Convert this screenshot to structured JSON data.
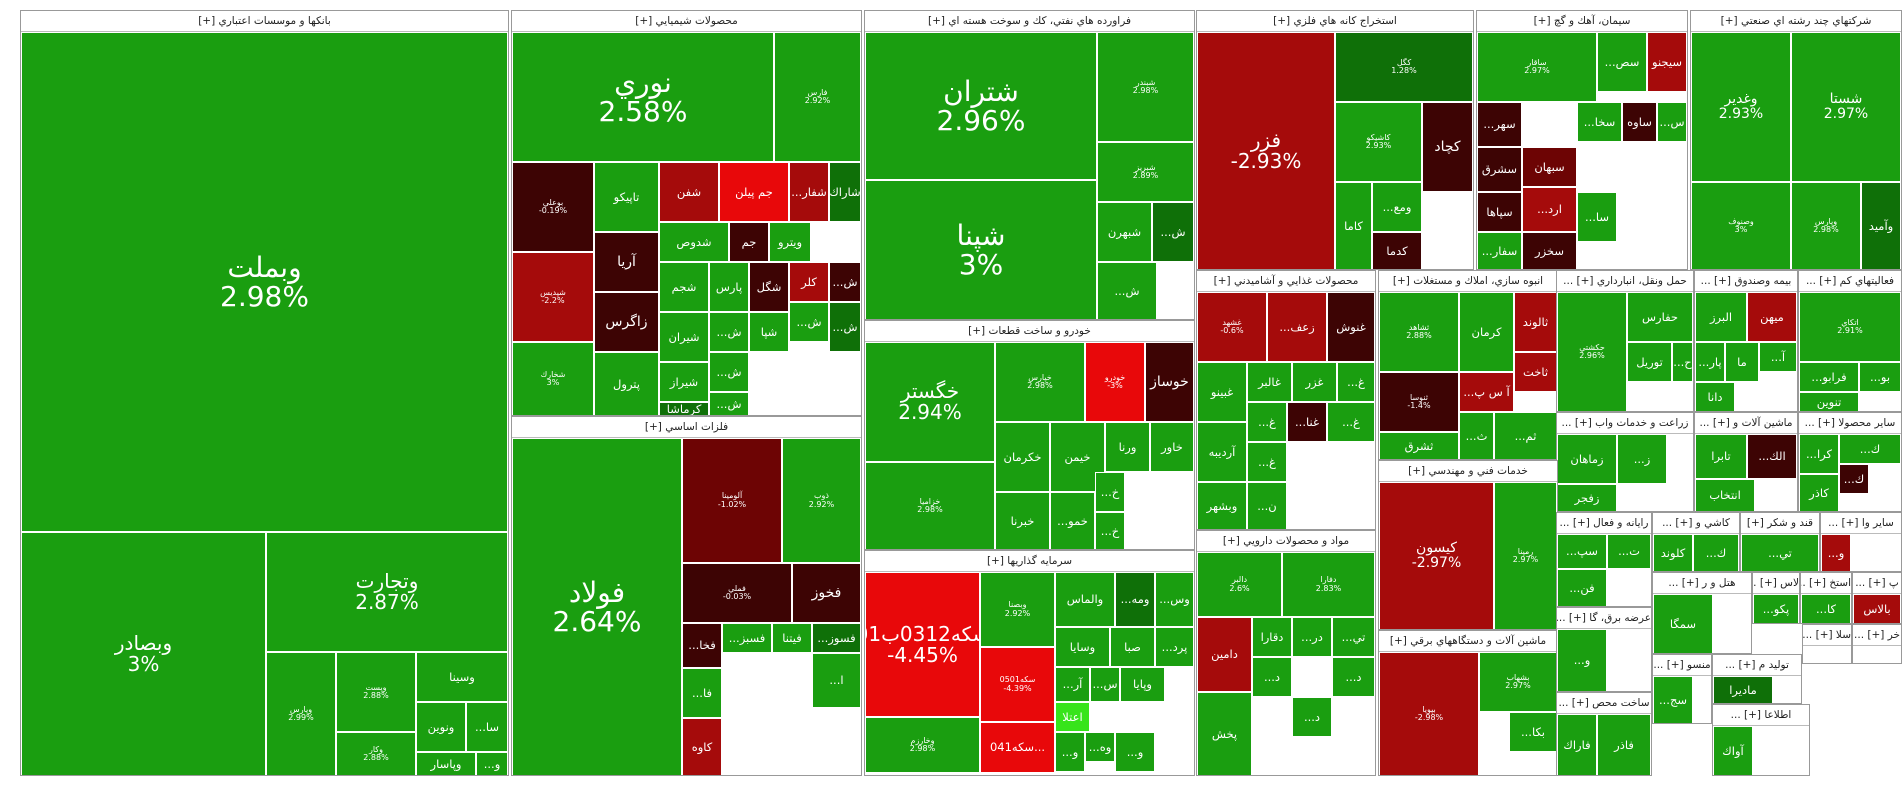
{
  "colors": {
    "strong_green": "#1a9e10",
    "dark_green": "#0f7008",
    "light_green": "#22c40f",
    "bright_green": "#37e41b",
    "red": "#a50b0b",
    "bright_red": "#e8080a",
    "dark_red": "#3d0404",
    "maroon": "#6d0404",
    "header_bg": "#ffffff",
    "text": "#ffffff"
  },
  "sections": [
    {
      "id": "banks",
      "label": "بانكها و موسسات اعتباري [+]",
      "tiles": [
        {
          "n": "وبملت",
          "p": "2.98%"
        },
        {
          "n": "وتجارت",
          "p": "2.87%"
        },
        {
          "n": "وبصادر",
          "p": "3%"
        },
        {
          "n": "وپارس",
          "p": "2.99%"
        },
        {
          "n": "وپست",
          "p": "2.88%"
        },
        {
          "n": "وسينا",
          "p": ""
        },
        {
          "n": "ونوين",
          "p": ""
        },
        {
          "n": "...سا",
          "p": ""
        },
        {
          "n": "وكار",
          "p": "2.88%"
        },
        {
          "n": "وپاسار",
          "p": ""
        },
        {
          "n": "...و",
          "p": ""
        }
      ]
    },
    {
      "id": "chemical",
      "label": "محصولات شيميايي [+]",
      "tiles": [
        {
          "n": "نوري",
          "p": "2.58%"
        },
        {
          "n": "فارس",
          "p": "2.92%"
        },
        {
          "n": "بوعلي",
          "p": "-0.19%"
        },
        {
          "n": "تاپيكو",
          "p": ""
        },
        {
          "n": "شفن",
          "p": ""
        },
        {
          "n": "جم پيلن",
          "p": ""
        },
        {
          "n": "...شفار",
          "p": ""
        },
        {
          "n": "شاراك",
          "p": ""
        },
        {
          "n": "آريا",
          "p": ""
        },
        {
          "n": "شدوص",
          "p": ""
        },
        {
          "n": "جم",
          "p": ""
        },
        {
          "n": "ويترو",
          "p": ""
        },
        {
          "n": "شپديس",
          "p": "-2.2%"
        },
        {
          "n": "زاگرس",
          "p": ""
        },
        {
          "n": "شجم",
          "p": ""
        },
        {
          "n": "پارس",
          "p": ""
        },
        {
          "n": "شگل",
          "p": ""
        },
        {
          "n": "كلر",
          "p": ""
        },
        {
          "n": "...ش",
          "p": ""
        },
        {
          "n": "شيران",
          "p": ""
        },
        {
          "n": "...ش",
          "p": ""
        },
        {
          "n": "شپا",
          "p": ""
        },
        {
          "n": "...ش",
          "p": ""
        },
        {
          "n": "...ش",
          "p": ""
        },
        {
          "n": "شيراز",
          "p": ""
        },
        {
          "n": "شخارك",
          "p": "3%"
        },
        {
          "n": "پترول",
          "p": ""
        },
        {
          "n": "كرماشا",
          "p": ""
        },
        {
          "n": "...ش",
          "p": ""
        },
        {
          "n": "...ش",
          "p": ""
        }
      ]
    },
    {
      "id": "oil",
      "label": "فراورده هاي نفتي، كك و سوخت هسته اي [+]",
      "tiles": [
        {
          "n": "شتران",
          "p": "2.96%"
        },
        {
          "n": "شبندر",
          "p": "2.98%"
        },
        {
          "n": "شپنا",
          "p": "3%"
        },
        {
          "n": "شبريز",
          "p": "2.89%"
        },
        {
          "n": "شبهرن",
          "p": ""
        },
        {
          "n": "...ش",
          "p": ""
        },
        {
          "n": "...ش",
          "p": ""
        }
      ]
    },
    {
      "id": "auto",
      "label": "خودرو و ساخت قطعات [+]",
      "tiles": [
        {
          "n": "خگستر",
          "p": "2.94%"
        },
        {
          "n": "خپارس",
          "p": "2.98%"
        },
        {
          "n": "خودرو",
          "p": "-3%"
        },
        {
          "n": "خوساز",
          "p": ""
        },
        {
          "n": "خزاميا",
          "p": "2.98%"
        },
        {
          "n": "خكرمان",
          "p": ""
        },
        {
          "n": "خيمن",
          "p": ""
        },
        {
          "n": "ورنا",
          "p": ""
        },
        {
          "n": "خاور",
          "p": ""
        },
        {
          "n": "خبرنا",
          "p": ""
        },
        {
          "n": "...خمو",
          "p": ""
        },
        {
          "n": "...خ",
          "p": ""
        },
        {
          "n": "...خ",
          "p": ""
        }
      ]
    },
    {
      "id": "invest",
      "label": "سرمايه گذاريها [+]",
      "tiles": [
        {
          "n": "سكه0312ب01",
          "p": "-4.45%"
        },
        {
          "n": "وبصنا",
          "p": "2.92%"
        },
        {
          "n": "والماس",
          "p": ""
        },
        {
          "n": "...ومه",
          "p": ""
        },
        {
          "n": "...وس",
          "p": ""
        },
        {
          "n": "وسايا",
          "p": ""
        },
        {
          "n": "صبا",
          "p": ""
        },
        {
          "n": "...پرد",
          "p": ""
        },
        {
          "n": "سكه0501",
          "p": "-4.39%"
        },
        {
          "n": "...آر",
          "p": ""
        },
        {
          "n": "...س",
          "p": ""
        },
        {
          "n": "وپايا",
          "p": ""
        },
        {
          "n": "اعتلا",
          "p": ""
        },
        {
          "n": "وخارزم",
          "p": "2.98%"
        },
        {
          "n": "سكه041...",
          "p": ""
        },
        {
          "n": "...و",
          "p": ""
        },
        {
          "n": "...وه",
          "p": ""
        },
        {
          "n": "...و",
          "p": ""
        }
      ]
    },
    {
      "id": "metals",
      "label": "فلزات اساسي [+]",
      "tiles": [
        {
          "n": "فولاد",
          "p": "2.64%"
        },
        {
          "n": "آلومينا",
          "p": "-1.02%"
        },
        {
          "n": "ذوب",
          "p": "2.92%"
        },
        {
          "n": "فملي",
          "p": "-0.03%"
        },
        {
          "n": "فخوز",
          "p": ""
        },
        {
          "n": "...فخا",
          "p": ""
        },
        {
          "n": "...فسبز",
          "p": ""
        },
        {
          "n": "فيتنا",
          "p": ""
        },
        {
          "n": "...فسوز",
          "p": ""
        },
        {
          "n": "...فا",
          "p": ""
        },
        {
          "n": "كاوه",
          "p": ""
        },
        {
          "n": "...ا",
          "p": ""
        }
      ]
    },
    {
      "id": "mining",
      "label": "استخراج كانه هاي فلزي [+]",
      "tiles": [
        {
          "n": "فزر",
          "p": "-2.93%"
        },
        {
          "n": "كگل",
          "p": "1.28%"
        },
        {
          "n": "كچاد",
          "p": ""
        },
        {
          "n": "كاشيكو",
          "p": "2.93%"
        },
        {
          "n": "...ومع",
          "p": ""
        },
        {
          "n": "كاما",
          "p": ""
        },
        {
          "n": "كدما",
          "p": ""
        }
      ]
    },
    {
      "id": "cement",
      "label": "سيمان، آهك و گچ [+]",
      "tiles": [
        {
          "n": "سيجنو",
          "p": ""
        },
        {
          "n": "ساقار",
          "p": "2.97%"
        },
        {
          "n": "...سص",
          "p": ""
        },
        {
          "n": "...سهر",
          "p": ""
        },
        {
          "n": "...سخا",
          "p": ""
        },
        {
          "n": "ساوه",
          "p": ""
        },
        {
          "n": "...س",
          "p": ""
        },
        {
          "n": "سشرق",
          "p": ""
        },
        {
          "n": "سبهان",
          "p": ""
        },
        {
          "n": "سپاها",
          "p": ""
        },
        {
          "n": "...ارد",
          "p": ""
        },
        {
          "n": "...سا",
          "p": ""
        },
        {
          "n": "...سفار",
          "p": ""
        },
        {
          "n": "سخزر",
          "p": ""
        }
      ]
    },
    {
      "id": "multi",
      "label": "شركتهاي چند رشته اي صنعتي [+]",
      "tiles": [
        {
          "n": "وغدير",
          "p": "2.93%"
        },
        {
          "n": "شستا",
          "p": "2.97%"
        },
        {
          "n": "وصنوف",
          "p": "3%"
        },
        {
          "n": "وپارس",
          "p": "2.98%"
        },
        {
          "n": "وآميد",
          "p": ""
        }
      ]
    },
    {
      "id": "food",
      "label": "محصولات غذايي و آشاميدني [+]",
      "tiles": [
        {
          "n": "غشهد",
          "p": "-0.6%"
        },
        {
          "n": "...زعف",
          "p": ""
        },
        {
          "n": "غنوش",
          "p": ""
        },
        {
          "n": "غالبر",
          "p": ""
        },
        {
          "n": "غزر",
          "p": ""
        },
        {
          "n": "...غ",
          "p": ""
        },
        {
          "n": "غبينو",
          "p": ""
        },
        {
          "n": "...غ",
          "p": ""
        },
        {
          "n": "...غنا",
          "p": ""
        },
        {
          "n": "آرديبه",
          "p": ""
        },
        {
          "n": "...غ",
          "p": ""
        },
        {
          "n": "...غ",
          "p": ""
        },
        {
          "n": "وبشهر",
          "p": ""
        },
        {
          "n": "...ن",
          "p": ""
        }
      ]
    },
    {
      "id": "realestate",
      "label": "انبوه سازي، املاك و مستغلات [+]",
      "tiles": [
        {
          "n": "ثشاهد",
          "p": "2.88%"
        },
        {
          "n": "كرمان",
          "p": ""
        },
        {
          "n": "ثالوند",
          "p": ""
        },
        {
          "n": "ثنوسا",
          "p": "-1.4%"
        },
        {
          "n": "...آ س پ",
          "p": ""
        },
        {
          "n": "ثاخت",
          "p": ""
        },
        {
          "n": "ثشرق",
          "p": ""
        },
        {
          "n": "...ث",
          "p": ""
        },
        {
          "n": "...ثم",
          "p": ""
        }
      ]
    },
    {
      "id": "transport",
      "label": "حمل ونقل، انبارداري [+] ...",
      "tiles": [
        {
          "n": "حكشتي",
          "p": "2.96%"
        },
        {
          "n": "حفارس",
          "p": ""
        },
        {
          "n": "توريل",
          "p": ""
        },
        {
          "n": "...ح",
          "p": ""
        }
      ]
    },
    {
      "id": "insurance",
      "label": "بيمه وصندوق [+] ...",
      "tiles": [
        {
          "n": "البرز",
          "p": ""
        },
        {
          "n": "ميهن",
          "p": ""
        },
        {
          "n": "...پار",
          "p": ""
        },
        {
          "n": "ما",
          "p": ""
        },
        {
          "n": "...آ",
          "p": ""
        },
        {
          "n": "دانا",
          "p": ""
        }
      ]
    },
    {
      "id": "other_fin",
      "label": "فعاليتهاي كم [+] ...",
      "tiles": [
        {
          "n": "اتكاي",
          "p": "2.91%"
        },
        {
          "n": "...فرابو",
          "p": ""
        },
        {
          "n": "...بو",
          "p": ""
        },
        {
          "n": "تنوين",
          "p": ""
        }
      ]
    },
    {
      "id": "agri",
      "label": "زراعت و خدمات واب [+] ...",
      "tiles": [
        {
          "n": "زماهان",
          "p": ""
        },
        {
          "n": "...ز",
          "p": ""
        },
        {
          "n": "زفجر",
          "p": ""
        }
      ]
    },
    {
      "id": "machinery",
      "label": "ماشين آلات و [+] ...",
      "tiles": [
        {
          "n": "تابرا",
          "p": ""
        },
        {
          "n": "...الك",
          "p": ""
        },
        {
          "n": "انتخاب",
          "p": ""
        }
      ]
    },
    {
      "id": "misc_prod",
      "label": "ساير محصولا [+] ...",
      "tiles": [
        {
          "n": "...ك",
          "p": ""
        },
        {
          "n": "...كرا",
          "p": ""
        },
        {
          "n": "...ك",
          "p": ""
        },
        {
          "n": "كاذر",
          "p": ""
        }
      ]
    },
    {
      "id": "engineering",
      "label": "خدمات فني و مهندسي [+]",
      "tiles": [
        {
          "n": "كيسون",
          "p": "-2.97%"
        },
        {
          "n": "رمپنا",
          "p": "2.97%"
        }
      ]
    },
    {
      "id": "pharma",
      "label": "مواد و محصولات دارويي [+]",
      "tiles": [
        {
          "n": "دالبر",
          "p": "2.6%"
        },
        {
          "n": "دفارا",
          "p": "2.83%"
        },
        {
          "n": "دامين",
          "p": ""
        },
        {
          "n": "دقارا",
          "p": ""
        },
        {
          "n": "...در",
          "p": ""
        },
        {
          "n": "...تي",
          "p": ""
        },
        {
          "n": "...د",
          "p": ""
        },
        {
          "n": "...د",
          "p": ""
        },
        {
          "n": "پخش",
          "p": ""
        },
        {
          "n": "...د",
          "p": ""
        }
      ]
    },
    {
      "id": "electric",
      "label": "ماشين آلات و دستگاههاي برقي [+]",
      "tiles": [
        {
          "n": "بپويا",
          "p": "-2.98%"
        },
        {
          "n": "بشهاب",
          "p": "2.97%"
        },
        {
          "n": "...بكا",
          "p": ""
        }
      ]
    },
    {
      "id": "computer",
      "label": "رايانه و فعال [+] ...",
      "tiles": [
        {
          "n": "...سپ",
          "p": ""
        },
        {
          "n": "...ت",
          "p": ""
        },
        {
          "n": "...فن",
          "p": ""
        }
      ]
    },
    {
      "id": "tiles",
      "label": "كاشي و [+] ...",
      "tiles": [
        {
          "n": "كلوند",
          "p": ""
        },
        {
          "n": "...ك",
          "p": ""
        }
      ]
    },
    {
      "id": "sugar",
      "label": "قند و شكر [+]",
      "tiles": [
        {
          "n": "...تي",
          "p": ""
        }
      ]
    },
    {
      "id": "misc2",
      "label": "ساير وا [+] ...",
      "tiles": [
        {
          "n": "...و",
          "p": ""
        }
      ]
    },
    {
      "id": "utilities",
      "label": "عرضه برق، گا [+] ...",
      "tiles": [
        {
          "n": "...و",
          "p": ""
        }
      ]
    },
    {
      "id": "hotels",
      "label": "هتل و ر [+] ...",
      "tiles": [
        {
          "n": "سمگا",
          "p": ""
        }
      ]
    },
    {
      "id": "textile",
      "label": "منسو [+] ...",
      "tiles": [
        {
          "n": "...سج",
          "p": ""
        }
      ]
    },
    {
      "id": "construction",
      "label": "ساخت محص [+] ...",
      "tiles": [
        {
          "n": "فاذر",
          "p": ""
        },
        {
          "n": "فاراك",
          "p": ""
        }
      ]
    },
    {
      "id": "plastic",
      "label": "لاس [+] ...",
      "tiles": [
        {
          "n": "...پكو",
          "p": ""
        }
      ]
    },
    {
      "id": "extraction",
      "label": "استخ [+] ...",
      "tiles": [
        {
          "n": "...كا",
          "p": ""
        }
      ]
    },
    {
      "id": "misc3",
      "label": "پ [+] ...",
      "tiles": [
        {
          "n": "بالاس",
          "p": ""
        }
      ]
    },
    {
      "id": "production",
      "label": "توليد م [+] ...",
      "tiles": [
        {
          "n": "ماديرا",
          "p": ""
        }
      ]
    },
    {
      "id": "misc4",
      "label": "سلا [+] ...",
      "tiles": []
    },
    {
      "id": "misc5",
      "label": "خر [+] ...",
      "tiles": []
    },
    {
      "id": "info",
      "label": "اطلاعا [+] ...",
      "tiles": [
        {
          "n": "آواك",
          "p": ""
        }
      ]
    }
  ]
}
